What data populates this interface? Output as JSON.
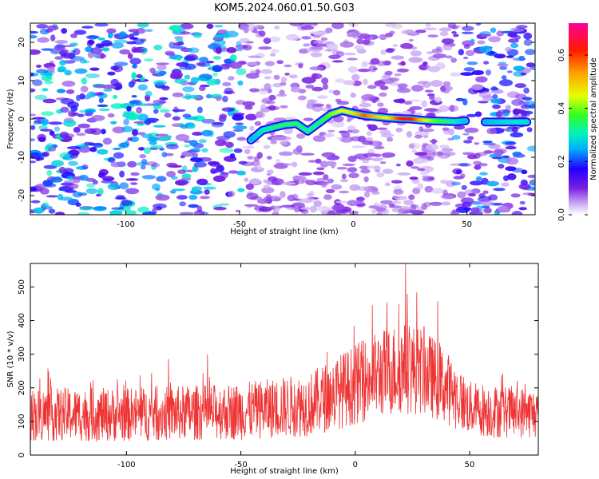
{
  "title": "KOM5.2024.060.01.50.G03",
  "chart_data": [
    {
      "type": "heatmap",
      "xlabel": "Height of straight line (km)",
      "ylabel": "Frequency (Hz)",
      "xlim": [
        -142,
        80
      ],
      "ylim": [
        -25,
        25
      ],
      "xticks": [
        -100,
        -50,
        0,
        50
      ],
      "xtick_labels": [
        "-100",
        "-50",
        "0",
        "50"
      ],
      "yticks": [
        -20,
        -10,
        0,
        10,
        20
      ],
      "ytick_labels": [
        "-20",
        "-10",
        "0",
        "10",
        "20"
      ],
      "colorbar": {
        "label": "Normalized spectral amplitude",
        "range": [
          0.0,
          0.72
        ],
        "ticks": [
          0.0,
          0.2,
          0.4,
          0.6
        ],
        "tick_labels": [
          "0.0",
          "0.2",
          "0.4",
          "0.6"
        ],
        "colormap": "rainbow (white-purple-blue-cyan-green-yellow-orange-red-magenta)"
      },
      "ridge": {
        "description": "strong signal track",
        "points": [
          {
            "x": -45,
            "y": -5.5,
            "amp": 0.25
          },
          {
            "x": -40,
            "y": -3,
            "amp": 0.3
          },
          {
            "x": -35,
            "y": -2.2,
            "amp": 0.33
          },
          {
            "x": -30,
            "y": -1.5,
            "amp": 0.35
          },
          {
            "x": -25,
            "y": -1.2,
            "amp": 0.35
          },
          {
            "x": -20,
            "y": -3.2,
            "amp": 0.32
          },
          {
            "x": -15,
            "y": -1,
            "amp": 0.33
          },
          {
            "x": -10,
            "y": 1.2,
            "amp": 0.4
          },
          {
            "x": -5,
            "y": 2.2,
            "amp": 0.45
          },
          {
            "x": 0,
            "y": 1.5,
            "amp": 0.47
          },
          {
            "x": 5,
            "y": 0.9,
            "amp": 0.58
          },
          {
            "x": 10,
            "y": 0.6,
            "amp": 0.5
          },
          {
            "x": 15,
            "y": 0.3,
            "amp": 0.45
          },
          {
            "x": 20,
            "y": 0.1,
            "amp": 0.6
          },
          {
            "x": 25,
            "y": 0.0,
            "amp": 0.65
          },
          {
            "x": 30,
            "y": -0.3,
            "amp": 0.5
          },
          {
            "x": 35,
            "y": -0.5,
            "amp": 0.4
          },
          {
            "x": 40,
            "y": -0.6,
            "amp": 0.35
          },
          {
            "x": 45,
            "y": -0.7,
            "amp": 0.3
          },
          {
            "x": 50,
            "y": -0.5,
            "amp": 0.25
          },
          {
            "x": 58,
            "y": -0.8,
            "amp": 0.25
          },
          {
            "x": 65,
            "y": -0.8,
            "amp": 0.28
          },
          {
            "x": 72,
            "y": -0.8,
            "amp": 0.3
          },
          {
            "x": 77,
            "y": -0.8,
            "amp": 0.28
          }
        ],
        "gap": [
          51,
          57
        ]
      },
      "background_noise_level": {
        "x_ranges": [
          [
            -142,
            -48
          ],
          [
            -48,
            45
          ],
          [
            45,
            80
          ]
        ],
        "levels": [
          0.22,
          0.08,
          0.18
        ]
      }
    },
    {
      "type": "line",
      "xlabel": "Height of straight line (km)",
      "ylabel": "SNR (10 * v/v)",
      "xlim": [
        -142,
        80
      ],
      "ylim": [
        0,
        570
      ],
      "xticks": [
        -100,
        -50,
        0,
        50
      ],
      "xtick_labels": [
        "-100",
        "-50",
        "0",
        "50"
      ],
      "yticks": [
        0,
        100,
        200,
        300,
        400,
        500
      ],
      "ytick_labels": [
        "0",
        "100",
        "200",
        "300",
        "400",
        "500"
      ],
      "color": "#ee3333",
      "envelope": {
        "x": [
          -142,
          -100,
          -50,
          -20,
          0,
          10,
          20,
          30,
          40,
          50,
          60,
          80
        ],
        "mean": [
          120,
          120,
          130,
          150,
          210,
          240,
          260,
          250,
          200,
          140,
          130,
          125
        ],
        "spread": [
          80,
          80,
          85,
          95,
          120,
          130,
          140,
          130,
          110,
          80,
          80,
          75
        ]
      },
      "peak": {
        "x": 22,
        "y": 570
      }
    }
  ]
}
